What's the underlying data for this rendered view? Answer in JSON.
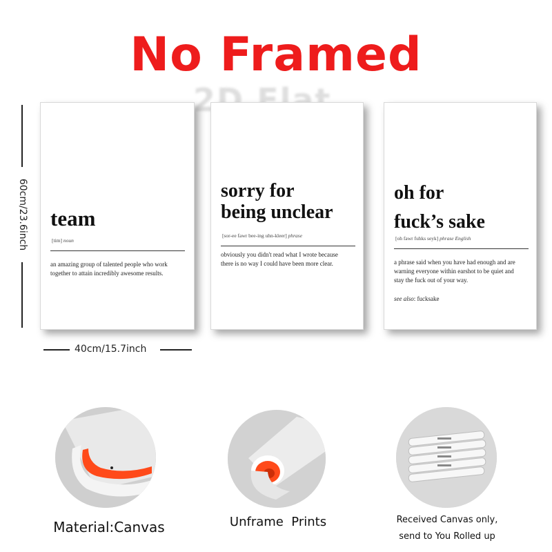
{
  "headline": "No Framed",
  "watermark": "2D Flat",
  "dimensions": {
    "height_label": "60cm/23.6inch",
    "width_label": "40cm/15.7inch"
  },
  "posters": [
    {
      "word": "team",
      "pronunciation": "[tim]",
      "part_of_speech": "noun",
      "definition_lines": [
        "an amazing group of talented people who work",
        "together to attain incredibly awesome results."
      ]
    },
    {
      "word_lines": [
        "sorry for",
        "being unclear"
      ],
      "pronunciation": "[sor-ee fawr bee-ing uhn-kleer]",
      "part_of_speech": "phrase",
      "definition_lines": [
        "obviously you didn't read what I wrote because",
        "there is no way I could have been more clear."
      ]
    },
    {
      "word_lines": [
        "oh for",
        "fuck’s sake"
      ],
      "pronunciation": "[oh fawr fuhks seyk]",
      "part_of_speech": "phrase",
      "language": "English",
      "definition_lines": [
        "a phrase said when you have had enough and are",
        "warning everyone within earshot to be quiet and",
        "stay the fuck out of your way."
      ],
      "see_also_label": "see also",
      "see_also_value": ": fucksake"
    }
  ],
  "features": [
    {
      "caption": "Material:Canvas",
      "icon": "canvas-fold-icon"
    },
    {
      "caption": "Unframe  Prints",
      "icon": "rolled-print-icon"
    },
    {
      "caption_lines": [
        "Received Canvas only,",
        "send to You Rolled up"
      ],
      "icon": "rolled-tubes-icon"
    }
  ],
  "colors": {
    "headline": "#ee1c1c",
    "canvas_back": "#ff4a1a"
  }
}
